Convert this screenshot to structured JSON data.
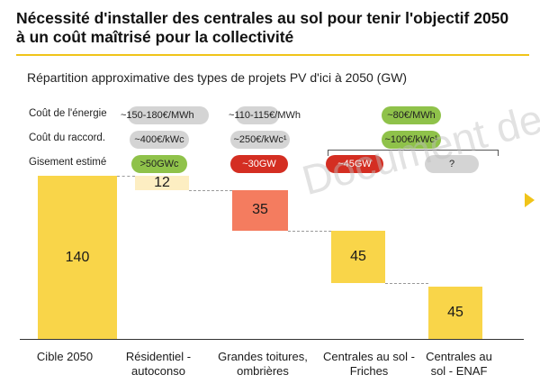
{
  "header": {
    "title": "Nécessité d'installer des centrales au sol pour tenir l'objectif 2050 à un coût maîtrisé pour la collectivité"
  },
  "chart_data": {
    "type": "waterfall",
    "title": "Répartition approximative des types de projets PV d'ici à 2050 (GW)",
    "categories": [
      "Cible 2050",
      "Résidentiel - autoconso",
      "Grandes toitures, ombrières",
      "Centrales au sol - Friches",
      "Centrales au sol - ENAF"
    ],
    "values": [
      140,
      12,
      35,
      45,
      45
    ],
    "bars": [
      {
        "category": "Cible 2050",
        "value": 140,
        "start": 0,
        "end": 140,
        "color": "#f9d549"
      },
      {
        "category": "Résidentiel - autoconso",
        "value": 12,
        "start": 128,
        "end": 140,
        "color": "#fdeec2"
      },
      {
        "category": "Grandes toitures, ombrières",
        "value": 35,
        "start": 93,
        "end": 128,
        "color": "#f47c5f"
      },
      {
        "category": "Centrales au sol - Friches",
        "value": 45,
        "start": 48,
        "end": 93,
        "color": "#f9d549"
      },
      {
        "category": "Centrales au sol - ENAF",
        "value": 45,
        "start": 0,
        "end": 45,
        "color": "#f9d549"
      }
    ],
    "ylim": [
      0,
      140
    ],
    "xlabel": "",
    "ylabel": "",
    "grid": false,
    "row_labels": [
      "Coût de l'énergie",
      "Coût du raccord.",
      "Gisement estimé"
    ],
    "annotations": {
      "cout_energie": [
        "~150-180€/MWh",
        "~110-115€/MWh",
        "~80€/MWh"
      ],
      "cout_raccord": [
        "~400€/kWc",
        "~250€/kWc¹",
        "~100€/kWc¹"
      ],
      "gisement": [
        ">50GWc",
        "~30GW",
        "~45GW",
        "?"
      ]
    },
    "pill_colors": {
      "grey": "#d4d4d4",
      "green": "#8fc24a",
      "red": "#d42e22"
    }
  },
  "watermark": "Document de",
  "colors": {
    "accent": "#f0c419"
  }
}
